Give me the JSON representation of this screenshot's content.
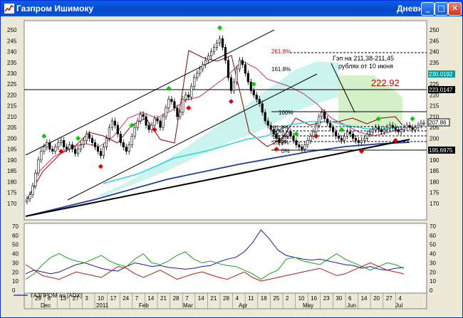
{
  "window": {
    "title": "Газпром Ишимоку",
    "view": "Дневной",
    "buttons": {
      "minimize": "_",
      "maximize": "□",
      "close": "✕"
    }
  },
  "colors": {
    "frame": "#0831d9",
    "title_bar": "#0a5fe6",
    "price_line": "#000000",
    "senkou_a": "#b03060",
    "kijun": "#8b0000",
    "trend": "#000000",
    "ma_cyan": "#00c8e0",
    "ma_blue": "#1e3ca0",
    "cloud": "#90e0d0",
    "cloud_green": "#7fd17f",
    "signal_up": "#00cc00",
    "signal_down": "#dd0000",
    "annotation": "#cc0000",
    "adx_blue": "#1a1aa0",
    "adx_green": "#1aa01a",
    "adx_red": "#b01a1a"
  },
  "icons": {
    "app": "chart-icon"
  },
  "chart_data": [
    {
      "type": "line",
      "ylim": [
        165,
        252
      ],
      "yticks": [
        170,
        175,
        180,
        185,
        190,
        195,
        200,
        205,
        210,
        215,
        220,
        225,
        230,
        235,
        240,
        245,
        250
      ],
      "grid": false,
      "annotations": {
        "gap_note_line1": "Гэп на 211,38-211,45",
        "gap_note_line2": "рублях от 10 июня",
        "target": "222.92",
        "fib_2618": "261.8%",
        "fib_1618": "161.8%",
        "fib_100": "100%",
        "fib_618": "61.8%",
        "fib_50": "50%",
        "fib_382": "38.2%",
        "fib_236": "23.6%",
        "fib_0": "0%"
      },
      "price_labels": {
        "r1": "230.0192",
        "r2": "223.0147",
        "r3": "207.86",
        "r4": "195.6975"
      },
      "series": [
        {
          "x": [
            0,
            1,
            2,
            3,
            4,
            5,
            6,
            7,
            8,
            9,
            10,
            11,
            12,
            13,
            14,
            15,
            16,
            17,
            18,
            19,
            20,
            21,
            22,
            23,
            24,
            25,
            26,
            27,
            28,
            29,
            30,
            31,
            32,
            33,
            34,
            35,
            36,
            37,
            38,
            39,
            40,
            41,
            42,
            43,
            44,
            45,
            46,
            47,
            48,
            49,
            50,
            51,
            52,
            53,
            54,
            55,
            56,
            57,
            58,
            59,
            60,
            61,
            62,
            63,
            64,
            65,
            66,
            67,
            68,
            69,
            70,
            71,
            72,
            73,
            74,
            75,
            76,
            77,
            78,
            79,
            80,
            81,
            82,
            83,
            84,
            85,
            86,
            87,
            88,
            89,
            90,
            91,
            92,
            93,
            94,
            95,
            96,
            97,
            98,
            99,
            100,
            101,
            102,
            103,
            104,
            105,
            106,
            107,
            108,
            109,
            110,
            111,
            112,
            113,
            114,
            115,
            116,
            117,
            118,
            119,
            120,
            121,
            122,
            123,
            124,
            125,
            126,
            127,
            128,
            129,
            130,
            131,
            132,
            133,
            134,
            135,
            136,
            137,
            138,
            139,
            140
          ],
          "values": [
            172,
            174,
            178,
            184,
            190,
            194,
            196,
            198,
            195,
            194,
            196,
            198,
            199,
            196,
            195,
            197,
            195,
            193,
            195,
            197,
            199,
            202,
            200,
            198,
            196,
            194,
            192,
            196,
            200,
            205,
            208,
            206,
            202,
            198,
            196,
            194,
            197,
            201,
            205,
            208,
            211,
            210,
            206,
            204,
            206,
            209,
            208,
            205,
            210,
            214,
            218,
            217,
            214,
            210,
            212,
            218,
            220,
            219,
            224,
            228,
            230,
            232,
            234,
            236,
            238,
            240,
            242,
            244,
            246,
            242,
            236,
            228,
            222,
            226,
            232,
            236,
            234,
            230,
            226,
            222,
            220,
            218,
            216,
            212,
            208,
            206,
            204,
            202,
            200,
            198,
            199,
            201,
            203,
            201,
            199,
            197,
            196,
            195,
            197,
            199,
            201,
            203,
            206,
            210,
            212,
            209,
            207,
            205,
            203,
            201,
            200,
            199,
            201,
            203,
            202,
            200,
            199,
            198,
            199,
            200,
            202,
            203,
            204,
            205,
            204,
            203,
            204,
            205,
            206,
            205,
            204,
            203,
            204,
            205,
            206,
            205,
            204,
            205,
            206,
            207,
            207
          ]
        }
      ]
    },
    {
      "type": "line",
      "legend": "ГАЗПРОМ ао [ADX]",
      "ylim": [
        0,
        70
      ],
      "yticks": [
        0,
        10,
        20,
        30,
        40,
        50,
        60,
        70
      ],
      "xticks": [
        "29",
        "6",
        "13",
        "27",
        "3",
        "10",
        "17",
        "24",
        "7",
        "14",
        "21",
        "28",
        "7",
        "14",
        "21",
        "28",
        "4",
        "11",
        "18",
        "25",
        "2",
        "10",
        "16",
        "23",
        "30",
        "6",
        "14",
        "20",
        "27",
        "4"
      ],
      "months": [
        "Dec",
        "2011",
        "Feb",
        "Mar",
        "Apr",
        "May",
        "Jun",
        "Jul"
      ],
      "series": [
        {
          "values": [
            18,
            22,
            20,
            18,
            20,
            24,
            28,
            30,
            27,
            24,
            22,
            21,
            26,
            30,
            28,
            26,
            27,
            25,
            24,
            23,
            24,
            26,
            27,
            31,
            34,
            36,
            42,
            52,
            66,
            56,
            44,
            38,
            36,
            34,
            33,
            34,
            32,
            30,
            28,
            27,
            24,
            26,
            23,
            22,
            24,
            25
          ]
        },
        {
          "values": [
            12,
            18,
            28,
            36,
            40,
            35,
            32,
            30,
            34,
            38,
            32,
            28,
            26,
            34,
            40,
            30,
            28,
            32,
            38,
            42,
            34,
            30,
            32,
            29,
            27,
            26,
            22,
            18,
            12,
            18,
            22,
            34,
            36,
            32,
            30,
            28,
            34,
            40,
            34,
            30,
            26,
            22,
            26,
            30,
            28,
            24
          ]
        },
        {
          "values": [
            28,
            22,
            16,
            14,
            12,
            16,
            20,
            18,
            16,
            14,
            20,
            26,
            24,
            18,
            14,
            18,
            22,
            17,
            12,
            15,
            18,
            20,
            17,
            14,
            12,
            16,
            20,
            14,
            10,
            12,
            14,
            16,
            18,
            20,
            22,
            24,
            20,
            16,
            18,
            22,
            26,
            30,
            26,
            22,
            20,
            18
          ]
        }
      ]
    }
  ]
}
